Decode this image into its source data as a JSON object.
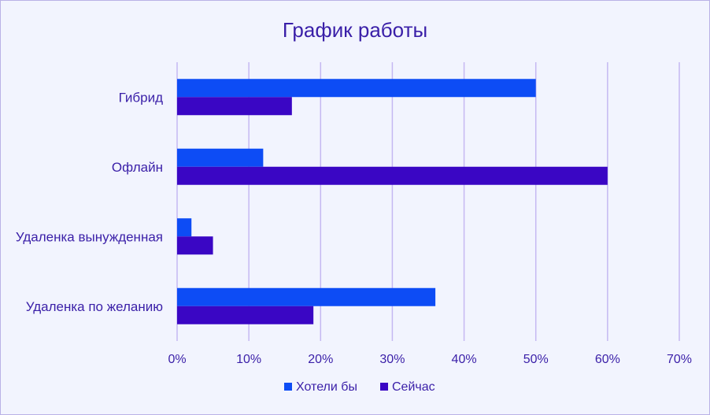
{
  "chart_data": {
    "type": "bar",
    "orientation": "horizontal",
    "title": "График работы",
    "categories": [
      "Гибрид",
      "Офлайн",
      "Удаленка вынужденная",
      "Удаленка по желанию"
    ],
    "series": [
      {
        "name": "Хотели бы",
        "values": [
          50,
          12,
          2,
          36
        ],
        "color": "#0d4cf5"
      },
      {
        "name": "Сейчас",
        "values": [
          16,
          60,
          5,
          19
        ],
        "color": "#3a06c4"
      }
    ],
    "xlim": [
      0,
      70
    ],
    "x_ticks": [
      0,
      10,
      20,
      30,
      40,
      50,
      60,
      70
    ],
    "x_tick_labels": [
      "0%",
      "10%",
      "20%",
      "30%",
      "40%",
      "50%",
      "60%",
      "70%"
    ],
    "value_unit": "%",
    "grid": true,
    "legend_position": "bottom",
    "colors": {
      "background": "#f2f4fe",
      "border": "#b9b2e6",
      "text": "#3a1fa8",
      "gridline": "#c5b8f2"
    }
  }
}
